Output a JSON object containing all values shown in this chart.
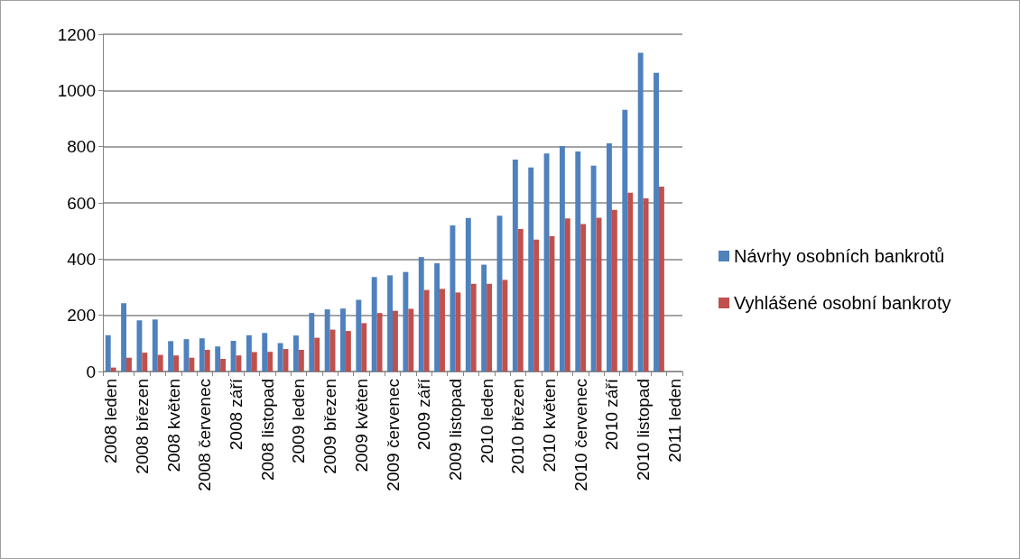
{
  "chart_data": {
    "type": "bar",
    "categories": [
      "2008 leden",
      null,
      "2008 březen",
      null,
      "2008 květen",
      null,
      "2008 červenec",
      null,
      "2008 září",
      null,
      "2008 listopad",
      null,
      "2009 leden",
      null,
      "2009 březen",
      null,
      "2009 květen",
      null,
      "2009 červenec",
      null,
      "2009 září",
      null,
      "2009 listopad",
      null,
      "2010 leden",
      null,
      "2010 březen",
      null,
      "2010 květen",
      null,
      "2010 červenec",
      null,
      "2010 září",
      null,
      "2010 listopad",
      null,
      "2011 leden"
    ],
    "series": [
      {
        "name": "Návrhy osobních bankrotů",
        "color": "#4f81bd",
        "values": [
          129,
          243,
          182,
          185,
          108,
          115,
          118,
          89,
          109,
          129,
          137,
          101,
          128,
          208,
          221,
          224,
          255,
          336,
          342,
          354,
          407,
          385,
          520,
          546,
          380,
          554,
          754,
          726,
          776,
          802,
          783,
          732,
          812,
          931,
          1134,
          1063,
          null
        ]
      },
      {
        "name": "Vyhlášené osobní bankroty",
        "color": "#c0504d",
        "values": [
          14,
          49,
          67,
          59,
          57,
          49,
          77,
          45,
          57,
          69,
          70,
          80,
          77,
          120,
          149,
          144,
          172,
          208,
          216,
          223,
          290,
          294,
          281,
          312,
          312,
          326,
          507,
          469,
          481,
          545,
          525,
          547,
          575,
          636,
          616,
          658,
          null
        ]
      }
    ],
    "ylim": [
      0,
      1200
    ],
    "yticks": [
      0,
      200,
      400,
      600,
      800,
      1000,
      1200
    ],
    "grid": "y",
    "legend": "right"
  }
}
